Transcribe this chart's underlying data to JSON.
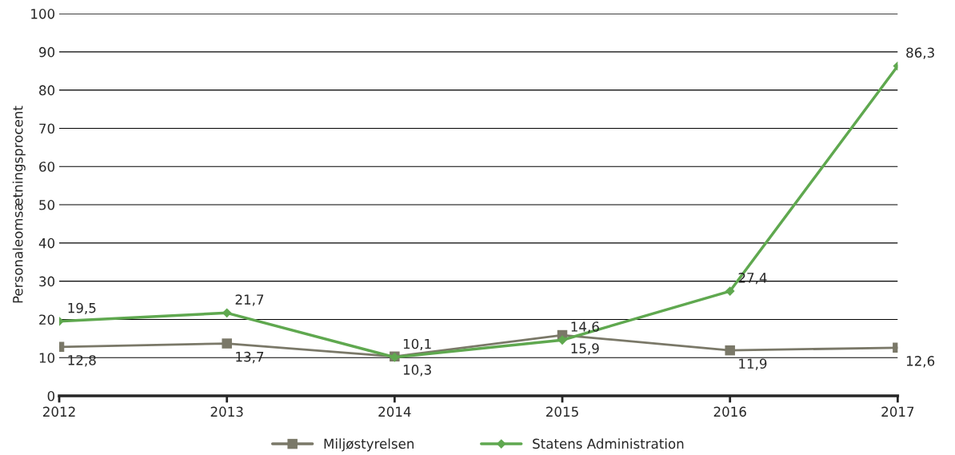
{
  "chart_data": {
    "type": "line",
    "ylabel": "Personaleomsætningsprocent",
    "categories": [
      "2012",
      "2013",
      "2014",
      "2015",
      "2016",
      "2017"
    ],
    "series": [
      {
        "name": "Miljøstyrelsen",
        "color": "#7a7868",
        "marker": "square",
        "values": [
          12.8,
          13.7,
          10.3,
          15.9,
          11.9,
          12.6
        ],
        "value_labels": [
          "12,8",
          "13,7",
          "10,3",
          "15,9",
          "11,9",
          "12,6"
        ]
      },
      {
        "name": "Statens Administration",
        "color": "#5fa84f",
        "marker": "diamond",
        "values": [
          19.5,
          21.7,
          10.1,
          14.6,
          27.4,
          86.3
        ],
        "value_labels": [
          "19,5",
          "21,7",
          "10,1",
          "14,6",
          "27,4",
          "86,3"
        ]
      }
    ],
    "ylim": [
      0,
      100
    ],
    "yticks": [
      0,
      10,
      20,
      30,
      40,
      50,
      60,
      70,
      80,
      90,
      100
    ],
    "grid": "y",
    "legend": "bottom",
    "line_style": "solid"
  }
}
